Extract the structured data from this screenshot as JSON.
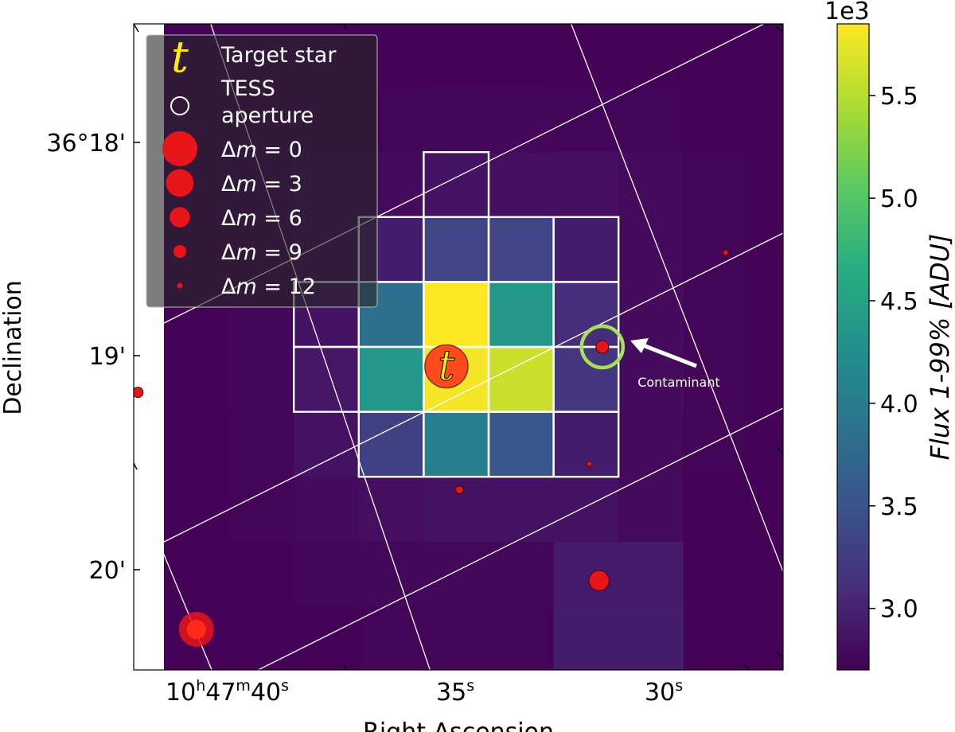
{
  "chart_data": {
    "type": "heatmap",
    "xlabel": "Right Ascension",
    "ylabel": "Declination",
    "x_ticks": [
      {
        "label_h": "10",
        "label_hs": "h",
        "label_m": "47",
        "label_ms": "m",
        "label_s": "40",
        "label_ss": "s"
      },
      {
        "label_s": "35",
        "label_ss": "s"
      },
      {
        "label_s": "30",
        "label_ss": "s"
      }
    ],
    "y_ticks": [
      "36°18'",
      "19'",
      "20'"
    ],
    "colorbar": {
      "label": "Flux 1-99% [ADU]",
      "offset_text": "1e3",
      "colormap": "viridis",
      "range": [
        2.7,
        5.85
      ],
      "ticks": [
        "3.0",
        "3.5",
        "4.0",
        "4.5",
        "5.0",
        "5.5"
      ],
      "tick_values": [
        3.0,
        3.5,
        4.0,
        4.5,
        5.0,
        5.5
      ]
    },
    "pixel_grid_columns": 10,
    "pixel_grid_rows": 10,
    "flux_grid": [
      [
        2.72,
        2.72,
        2.72,
        2.72,
        2.72,
        2.72,
        2.72,
        2.72,
        2.72,
        2.72
      ],
      [
        2.72,
        2.72,
        2.72,
        2.74,
        2.76,
        2.75,
        2.74,
        2.73,
        2.72,
        2.72
      ],
      [
        2.72,
        2.73,
        2.78,
        2.8,
        2.86,
        2.82,
        2.82,
        2.78,
        2.74,
        2.72
      ],
      [
        2.72,
        2.74,
        2.82,
        2.95,
        3.35,
        3.35,
        2.95,
        2.78,
        2.73,
        2.72
      ],
      [
        2.72,
        2.75,
        2.86,
        3.85,
        5.85,
        4.35,
        3.1,
        2.8,
        2.74,
        2.72
      ],
      [
        2.72,
        2.75,
        2.88,
        4.35,
        5.8,
        5.6,
        3.2,
        2.8,
        2.73,
        2.72
      ],
      [
        2.72,
        2.74,
        2.84,
        3.3,
        4.05,
        3.55,
        2.95,
        2.78,
        2.73,
        2.72
      ],
      [
        2.72,
        2.73,
        2.78,
        2.82,
        2.86,
        2.86,
        2.84,
        2.78,
        2.72,
        2.72
      ],
      [
        2.72,
        2.72,
        2.74,
        2.76,
        2.76,
        2.76,
        2.92,
        2.92,
        2.72,
        2.72
      ],
      [
        2.72,
        2.72,
        2.72,
        2.74,
        2.74,
        2.74,
        2.95,
        2.95,
        2.72,
        2.72
      ]
    ],
    "aperture_cells": [
      {
        "col": 4,
        "row": 2
      },
      {
        "col": 3,
        "row": 3
      },
      {
        "col": 4,
        "row": 3
      },
      {
        "col": 5,
        "row": 3
      },
      {
        "col": 6,
        "row": 3
      },
      {
        "col": 2,
        "row": 4
      },
      {
        "col": 3,
        "row": 4
      },
      {
        "col": 4,
        "row": 4
      },
      {
        "col": 5,
        "row": 4
      },
      {
        "col": 6,
        "row": 4
      },
      {
        "col": 2,
        "row": 5
      },
      {
        "col": 3,
        "row": 5
      },
      {
        "col": 4,
        "row": 5
      },
      {
        "col": 5,
        "row": 5
      },
      {
        "col": 6,
        "row": 5
      },
      {
        "col": 3,
        "row": 6
      },
      {
        "col": 4,
        "row": 6
      },
      {
        "col": 5,
        "row": 6
      },
      {
        "col": 6,
        "row": 6
      }
    ],
    "target": {
      "col": 4.35,
      "row": 5.3,
      "marker": "t",
      "color": "#ff4a1c",
      "marker_text_color": "#ffee00"
    },
    "stars": [
      {
        "col": 6.75,
        "row": 5.0,
        "dm": 9
      },
      {
        "col": 8.65,
        "row": 3.55,
        "dm": 12
      },
      {
        "col": 6.55,
        "row": 6.8,
        "dm": 12
      },
      {
        "col": 4.55,
        "row": 7.2,
        "dm": 11
      },
      {
        "col": 6.7,
        "row": 8.6,
        "dm": 6
      },
      {
        "col": 0.5,
        "row": 9.35,
        "dm": 0
      },
      {
        "col": -0.4,
        "row": 5.7,
        "dm": 10
      }
    ],
    "contaminant_ring": {
      "col": 6.75,
      "row": 5.0,
      "color": "#a8e05a"
    },
    "annotation": {
      "text": "Contaminant"
    },
    "legend": {
      "placement": "top-left",
      "entries": [
        {
          "kind": "target",
          "marker": "t",
          "label": "Target star"
        },
        {
          "kind": "aperture",
          "label_lines": [
            "TESS",
            "aperture"
          ]
        },
        {
          "kind": "star",
          "dm": 0,
          "prefix": "Δ",
          "var": "m",
          "suffix": " =  0"
        },
        {
          "kind": "star",
          "dm": 3,
          "prefix": "Δ",
          "var": "m",
          "suffix": " =  3"
        },
        {
          "kind": "star",
          "dm": 6,
          "prefix": "Δ",
          "var": "m",
          "suffix": " =  6"
        },
        {
          "kind": "star",
          "dm": 9,
          "prefix": "Δ",
          "var": "m",
          "suffix": " =  9"
        },
        {
          "kind": "star",
          "dm": 12,
          "prefix": "Δ",
          "var": "m",
          "suffix": " = 12"
        }
      ]
    },
    "star_color": "#e8151a",
    "grid_line_color": "#ffffff"
  }
}
